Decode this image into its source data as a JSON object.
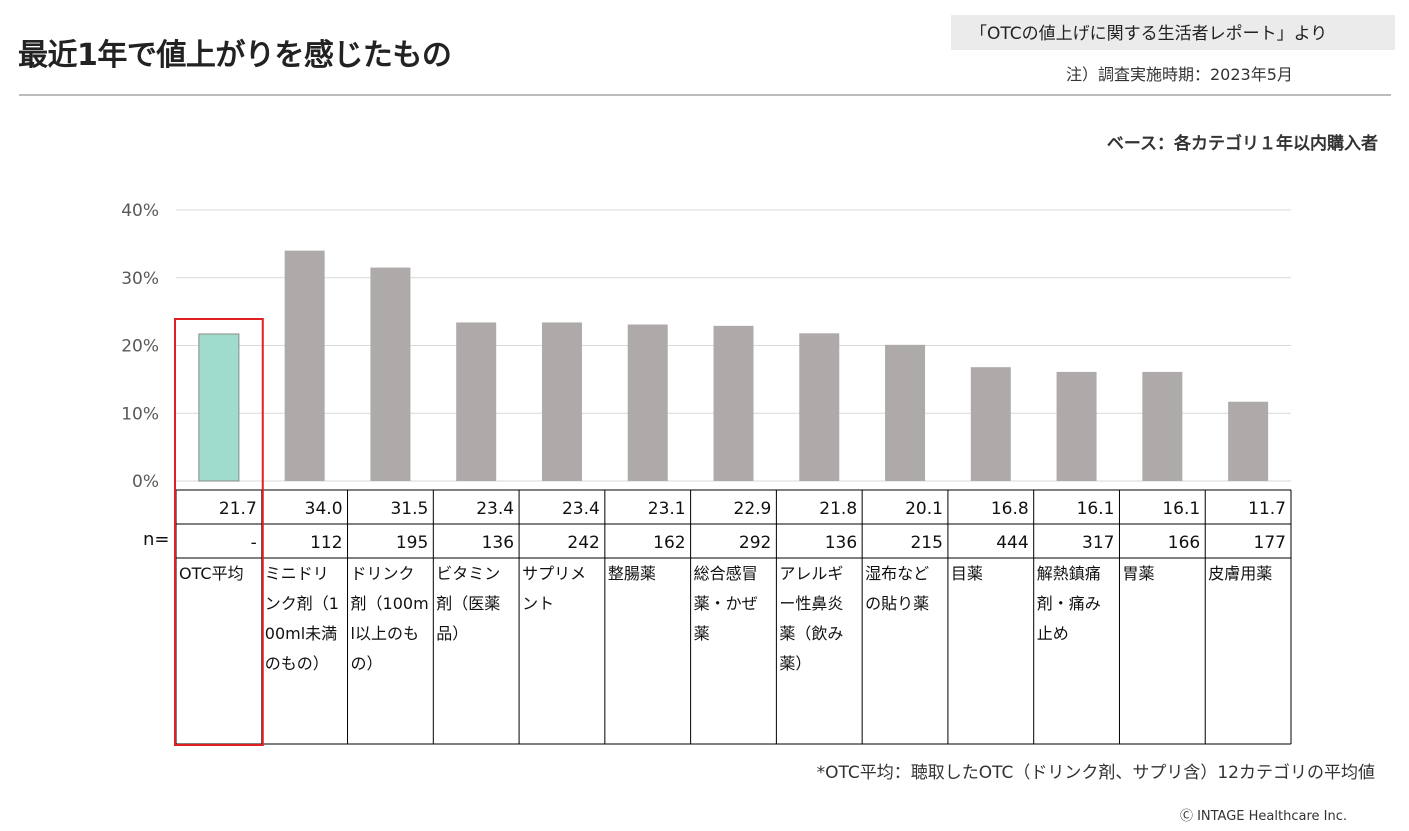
{
  "header": {
    "title": "最近1年で値上がりを感じたもの",
    "source": "「OTCの値上げに関する生活者レポート」より",
    "period": "注）調査実施時期：2023年5月",
    "base": "ベース：各カテゴリ１年以内購入者"
  },
  "chart_data": {
    "type": "bar",
    "categories": [
      "OTC平均",
      "ミニドリンク剤（100ml未満のもの）",
      "ドリンク剤（100ml以上のもの）",
      "ビタミン剤（医薬品）",
      "サプリメント",
      "整腸薬",
      "総合感冒薬・かぜ薬",
      "アレルギー性鼻炎薬（飲み薬）",
      "湿布などの貼り薬",
      "目薬",
      "解熱鎮痛剤・痛み止め",
      "胃薬",
      "皮膚用薬"
    ],
    "values": [
      21.7,
      34.0,
      31.5,
      23.4,
      23.4,
      23.1,
      22.9,
      21.8,
      20.1,
      16.8,
      16.1,
      16.1,
      11.7
    ],
    "value_labels": [
      "21.7",
      "34.0",
      "31.5",
      "23.4",
      "23.4",
      "23.1",
      "22.9",
      "21.8",
      "20.1",
      "16.8",
      "16.1",
      "16.1",
      "11.7"
    ],
    "n_label": "n=",
    "n_values": [
      "-",
      "112",
      "195",
      "136",
      "242",
      "162",
      "292",
      "136",
      "215",
      "444",
      "317",
      "166",
      "177"
    ],
    "y_ticks": [
      "0%",
      "10%",
      "20%",
      "30%",
      "40%"
    ],
    "ylim": [
      0,
      40
    ],
    "grid": true,
    "highlight_index": 0,
    "colors": {
      "highlight": "#a0dccb",
      "bar": "#aeaaa9",
      "highlight_border": "#e02020",
      "grid": "#d9d9d9"
    }
  },
  "footer": {
    "footnote": "*OTC平均：聴取したOTC（ドリンク剤、サプリ含）12カテゴリの平均値",
    "copyright": "Ⓒ INTAGE Healthcare Inc."
  }
}
